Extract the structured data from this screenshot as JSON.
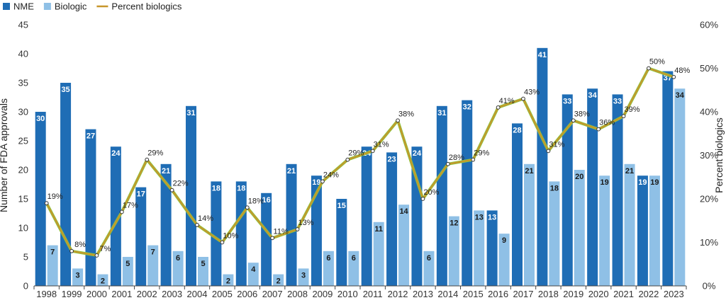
{
  "chart_data": {
    "type": "bar",
    "categories": [
      "1998",
      "1999",
      "2000",
      "2001",
      "2002",
      "2003",
      "2004",
      "2005",
      "2006",
      "2007",
      "2008",
      "2009",
      "2010",
      "2011",
      "2012",
      "2013",
      "2014",
      "2015",
      "2016",
      "2017",
      "2018",
      "2019",
      "2020",
      "2021",
      "2022",
      "2023"
    ],
    "series": [
      {
        "name": "NME",
        "type": "bar",
        "axis": "left",
        "color": "#1f6db5",
        "values": [
          30,
          35,
          27,
          24,
          17,
          21,
          31,
          18,
          18,
          16,
          21,
          19,
          15,
          24,
          23,
          24,
          31,
          32,
          13,
          28,
          41,
          33,
          34,
          33,
          19,
          37
        ]
      },
      {
        "name": "Biologic",
        "type": "bar",
        "axis": "left",
        "color": "#8fc0e6",
        "values": [
          7,
          3,
          2,
          5,
          7,
          6,
          5,
          2,
          4,
          2,
          3,
          6,
          6,
          11,
          14,
          6,
          12,
          13,
          9,
          21,
          18,
          20,
          19,
          21,
          19,
          34
        ]
      },
      {
        "name": "Percent biologics",
        "type": "line",
        "axis": "right",
        "color": "#c7962b",
        "values": [
          19,
          8,
          7,
          17,
          29,
          22,
          14,
          10,
          18,
          11,
          13,
          24,
          29,
          31,
          38,
          20,
          28,
          29,
          41,
          43,
          31,
          38,
          36,
          39,
          50,
          48
        ],
        "labels": [
          "19%",
          "8%",
          "7%",
          "17%",
          "29%",
          "22%",
          "14%",
          "10%",
          "18%",
          "11%",
          "13%",
          "24%",
          "29%",
          "31%",
          "38%",
          "20%",
          "28%",
          "29%",
          "41%",
          "43%",
          "31%",
          "38%",
          "36%",
          "39%",
          "50%",
          "48%"
        ]
      }
    ],
    "ylabel": "Number of FDA approvals",
    "y2label": "Percent biologics",
    "ylim": [
      0,
      45
    ],
    "y2lim": [
      0,
      60
    ],
    "yticks": [
      "0",
      "5",
      "10",
      "15",
      "20",
      "25",
      "30",
      "35",
      "40",
      "45"
    ],
    "y2ticks": [
      "0%",
      "10%",
      "20%",
      "30%",
      "40%",
      "50%",
      "60%"
    ],
    "legend": {
      "position": "top-left",
      "entries": [
        "NME",
        "Biologic",
        "Percent biologics"
      ]
    },
    "grid": false
  }
}
